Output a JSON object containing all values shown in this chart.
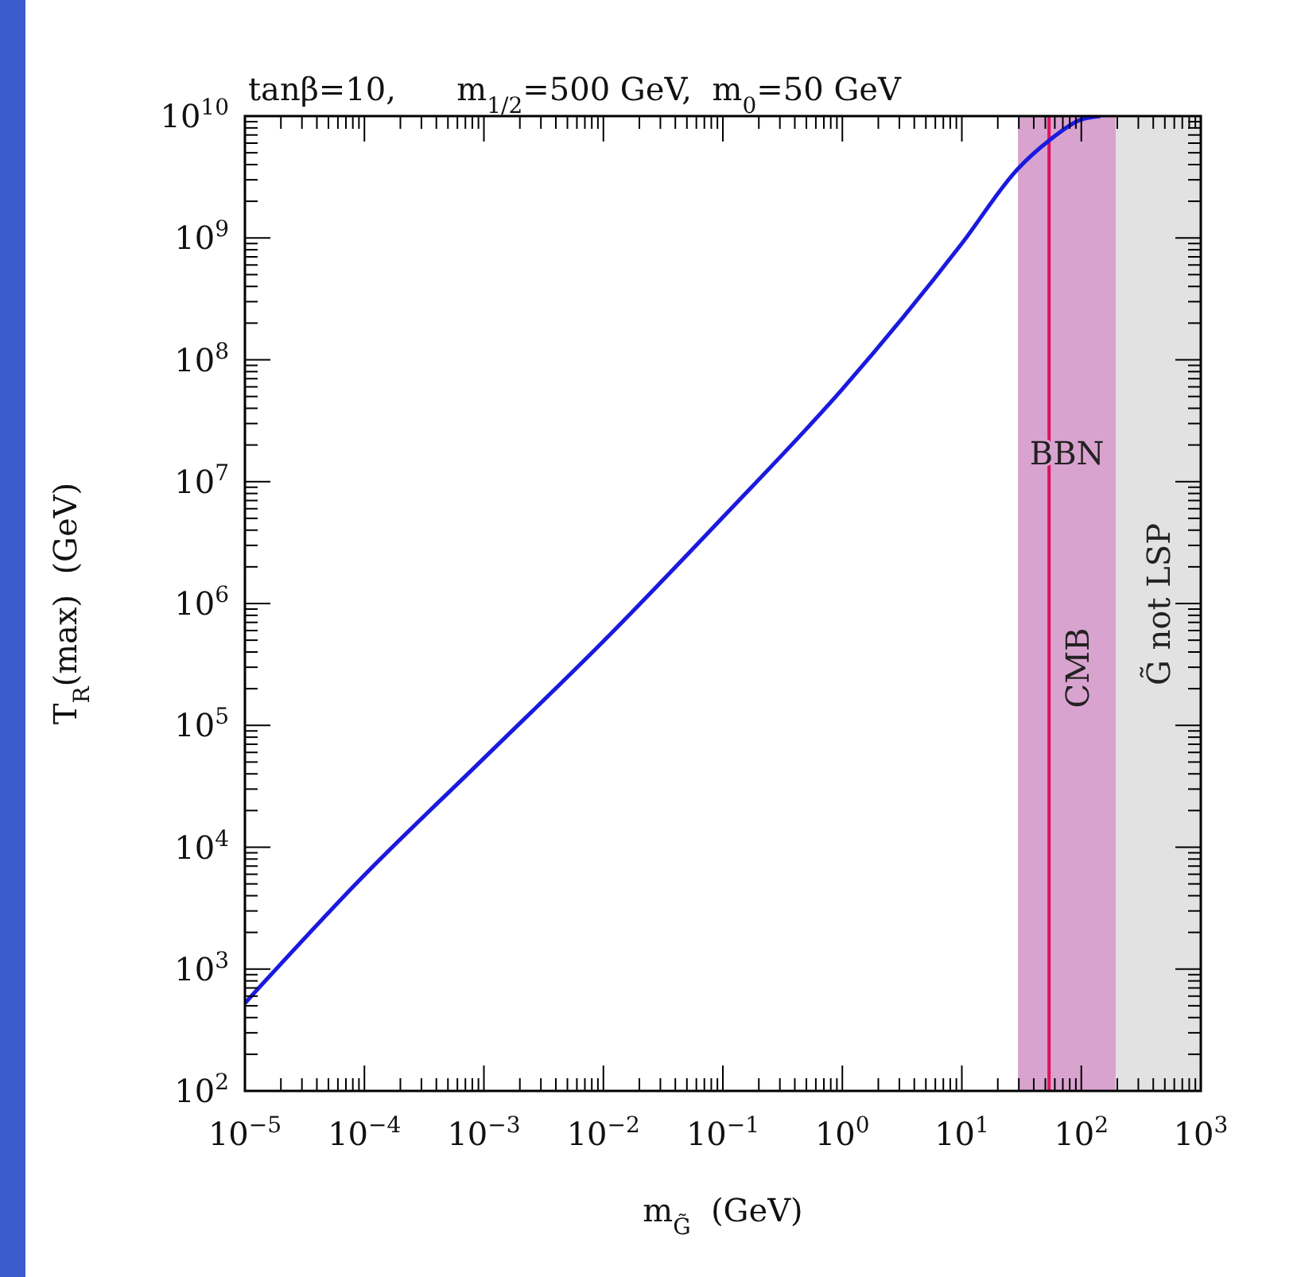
{
  "chart_data": {
    "type": "line",
    "title": "tanβ=10,      m$_{1/2}$=500 GeV,  m$_{0}$=50 GeV",
    "xlabel": "m$_{G̃}$  (GeV)",
    "ylabel": "T$_{R}$(max)  (GeV)",
    "log": "xy",
    "x": [
      1e-05,
      0.0001,
      0.001,
      0.01,
      0.1,
      1,
      10,
      29.5,
      53.7,
      97.7,
      144.5
    ],
    "series": [
      {
        "color": "#1a1adf",
        "values": [
          525,
          5900,
          53700,
          490000,
          5100000,
          57500000,
          900000000,
          3700000000,
          6300000000,
          9300000000,
          10000000000
        ]
      }
    ],
    "xlim": [
      1e-05,
      1000
    ],
    "ylim": [
      100,
      10000000000
    ],
    "xticks": [
      {
        "value": 1e-05,
        "label": "10$^{−5}$"
      },
      {
        "value": 0.0001,
        "label": "10$^{−4}$"
      },
      {
        "value": 0.001,
        "label": "10$^{−3}$"
      },
      {
        "value": 0.01,
        "label": "10$^{−2}$"
      },
      {
        "value": 0.1,
        "label": "10$^{−1}$"
      },
      {
        "value": 1,
        "label": "10$^{0}$"
      },
      {
        "value": 10,
        "label": "10$^{1}$"
      },
      {
        "value": 100,
        "label": "10$^{2}$"
      },
      {
        "value": 1000,
        "label": "10$^{3}$"
      }
    ],
    "yticks": [
      {
        "value": 100,
        "label": "10$^{2}$"
      },
      {
        "value": 1000,
        "label": "10$^{3}$"
      },
      {
        "value": 10000,
        "label": "10$^{4}$"
      },
      {
        "value": 100000,
        "label": "10$^{5}$"
      },
      {
        "value": 1000000,
        "label": "10$^{6}$"
      },
      {
        "value": 10000000,
        "label": "10$^{7}$"
      },
      {
        "value": 100000000,
        "label": "10$^{8}$"
      },
      {
        "value": 1000000000,
        "label": "10$^{9}$"
      },
      {
        "value": 10000000000,
        "label": "10$^{10}$"
      }
    ],
    "bands": [
      {
        "axis": "x",
        "from": 29.5,
        "to": 195,
        "label": "BBN",
        "color": "#d9a3cf"
      },
      {
        "axis": "x",
        "from": 195,
        "to": 1000,
        "label": "G̃ not LSP",
        "color": "#e2e2e2"
      }
    ],
    "ref_lines": [
      {
        "axis": "x",
        "value": 53.7,
        "label": "CMB",
        "color": "#e0105a"
      }
    ],
    "grid": false,
    "line_style": "solid"
  }
}
